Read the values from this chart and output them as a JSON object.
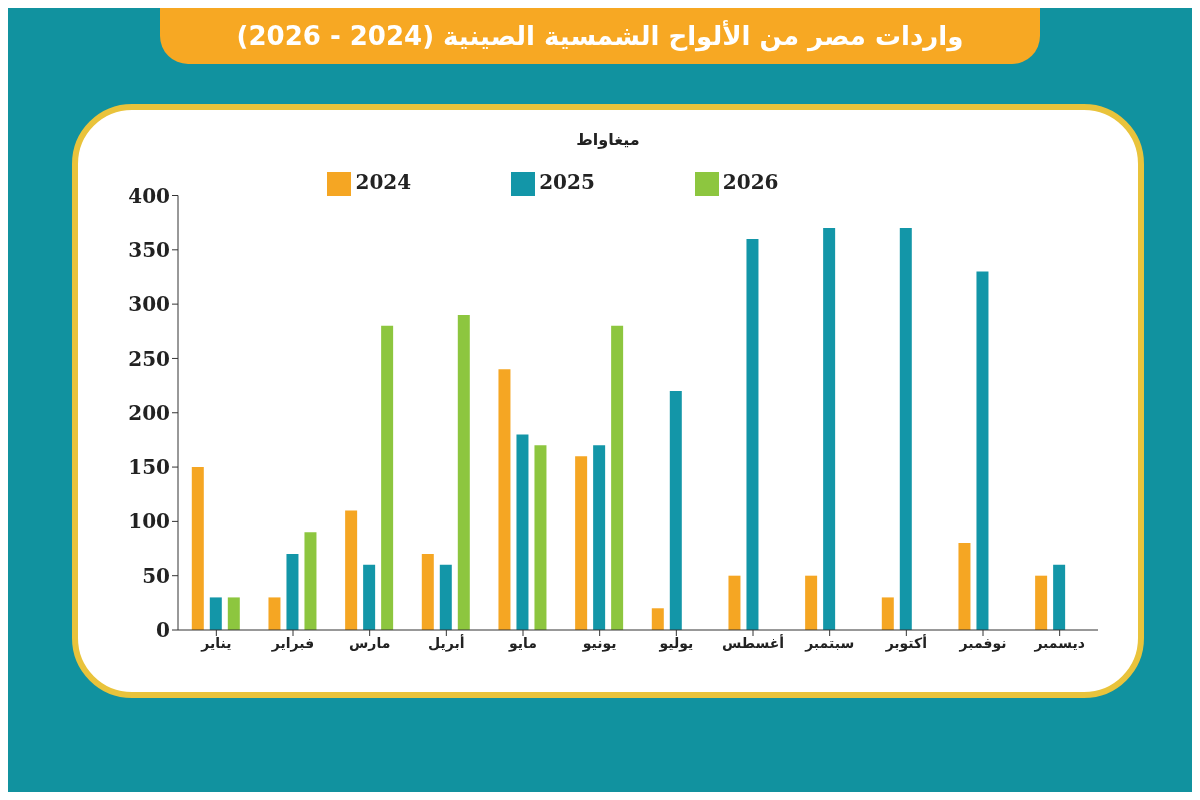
{
  "chart_data": {
    "type": "bar",
    "title": "واردات مصر من الألواح الشمسية الصينية (2024 - 2026)",
    "ylabel": "ميغاواط",
    "categories": [
      "يناير",
      "فبراير",
      "مارس",
      "أبريل",
      "مايو",
      "يونيو",
      "يوليو",
      "أغسطس",
      "سبتمبر",
      "أكتوبر",
      "نوفمبر",
      "ديسمبر"
    ],
    "series": [
      {
        "name": "2024",
        "color": "#f5a623",
        "values": [
          150,
          30,
          110,
          70,
          240,
          160,
          20,
          50,
          50,
          30,
          80,
          50
        ]
      },
      {
        "name": "2025",
        "color": "#1396a8",
        "values": [
          30,
          70,
          60,
          60,
          180,
          170,
          220,
          360,
          370,
          370,
          330,
          60
        ]
      },
      {
        "name": "2026",
        "color": "#8dc63f",
        "values": [
          30,
          90,
          280,
          290,
          170,
          280,
          null,
          null,
          null,
          null,
          null,
          null
        ]
      }
    ],
    "ylim": [
      0,
      400
    ],
    "yticks": [
      0,
      50,
      100,
      150,
      200,
      250,
      300,
      350,
      400
    ],
    "grid": false,
    "legend": "top"
  }
}
